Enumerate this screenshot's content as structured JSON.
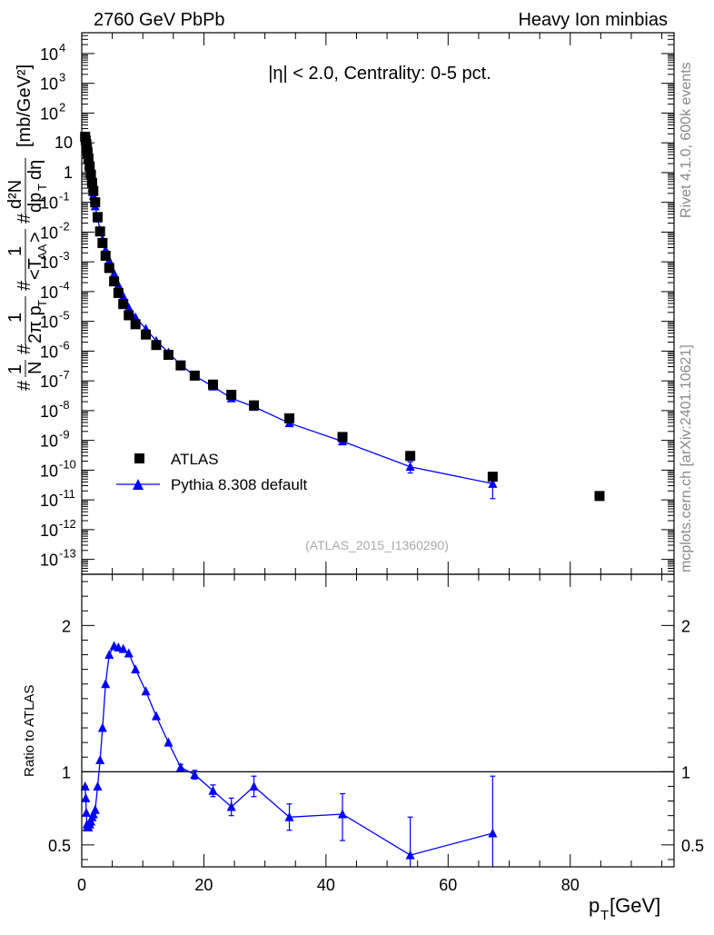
{
  "header": {
    "left": "2760 GeV PbPb",
    "right": "Heavy Ion minbias"
  },
  "side_labels": {
    "rivet": "Rivet 4.1.0,  600k events",
    "mcplots": "mcplots.cern.ch [arXiv:2401.10621]"
  },
  "annotations": {
    "cut": "|η| < 2.0, Centrality: 0-5 pct.",
    "analysis": "(ATLAS_2015_I1360290)"
  },
  "legend": {
    "data": "ATLAS",
    "mc": "Pythia 8.308 default"
  },
  "colors": {
    "data": "#000000",
    "mc": "#0000ff",
    "side_text": "#888888",
    "analysis_text": "#aaaaaa"
  },
  "chart_data": [
    {
      "type": "scatter",
      "panel": "main",
      "ylabel_parts": {
        "hash1": "#",
        "frac_N": "N",
        "hash2": "#",
        "two_pi_pt": "2π p",
        "T_sub": "T",
        "hash3": "#",
        "taa": "<T",
        "AA_sub": "AA",
        "taa_close": ">",
        "numer": "d²N",
        "denom": "dp",
        "denom_T": "T",
        "deta": "dη",
        "units": "[mb/GeV²]"
      },
      "xlim": [
        0,
        97
      ],
      "ylim_log10": [
        -13.5,
        4.7
      ],
      "log_y": true,
      "ytick_exponents": [
        4,
        3,
        2,
        1,
        0,
        -1,
        -2,
        -3,
        -4,
        -5,
        -6,
        -7,
        -8,
        -9,
        -10,
        -11,
        -12,
        -13
      ],
      "ytick_special": {
        "1": "10",
        "0": "1"
      },
      "series": [
        {
          "name": "ATLAS",
          "marker": "square",
          "x": [
            0.55,
            0.65,
            0.75,
            0.85,
            0.95,
            1.1,
            1.3,
            1.5,
            1.7,
            1.9,
            2.2,
            2.6,
            3.0,
            3.4,
            3.9,
            4.5,
            5.3,
            6.0,
            6.8,
            7.7,
            8.8,
            10.5,
            12.2,
            14.2,
            16.2,
            18.5,
            21.5,
            24.5,
            28.2,
            34.0,
            42.7,
            53.8,
            67.3,
            84.8
          ],
          "y": [
            16.0,
            12.0,
            9.0,
            6.5,
            4.8,
            3.0,
            1.6,
            0.85,
            0.45,
            0.24,
            0.1,
            0.032,
            0.0105,
            0.0043,
            0.0016,
            0.00062,
            0.00022,
            9e-05,
            3.8e-05,
            1.6e-05,
            8e-06,
            3.6e-06,
            1.6e-06,
            7.5e-07,
            3.3e-07,
            1.5e-07,
            7.5e-08,
            3.4e-08,
            1.5e-08,
            5.5e-09,
            1.3e-09,
            3e-10,
            6e-11,
            1.35e-11
          ]
        },
        {
          "name": "Pythia 8.308 default",
          "marker": "triangle",
          "line": true,
          "x": [
            0.55,
            0.65,
            0.75,
            0.85,
            0.95,
            1.1,
            1.3,
            1.5,
            1.7,
            1.9,
            2.2,
            2.6,
            3.0,
            3.4,
            3.9,
            4.5,
            5.3,
            6.0,
            6.8,
            7.7,
            8.8,
            10.5,
            12.2,
            14.2,
            16.2,
            18.5,
            21.5,
            24.5,
            28.2,
            34.0,
            42.7,
            53.8,
            67.3
          ],
          "y": [
            14.4,
            9.84,
            6.48,
            4.16,
            2.98,
            1.86,
            1.02,
            0.56,
            0.31,
            0.17,
            0.074,
            0.0288,
            0.0113,
            0.0056,
            0.00255,
            0.00112,
            0.00041,
            0.000167,
            7e-05,
            2.9e-05,
            1.36e-05,
            5.6e-06,
            2.2e-06,
            9e-07,
            3.4e-07,
            1.47e-07,
            6.5e-08,
            2.6e-08,
            1.35e-08,
            3.8e-09,
            9.3e-10,
            1.3e-10,
            3.5e-11
          ],
          "yerr_up": [
            0,
            0,
            0,
            0,
            0,
            0,
            0,
            0,
            0,
            0,
            0,
            0,
            0,
            0,
            0,
            0,
            0,
            0,
            0,
            0,
            0,
            0,
            0,
            0,
            0,
            0,
            0,
            0,
            0,
            5e-10,
            1.3e-10,
            6e-11,
            2.3e-11
          ],
          "yerr_down": [
            0,
            0,
            0,
            0,
            0,
            0,
            0,
            0,
            0,
            0,
            0,
            0,
            0,
            0,
            0,
            0,
            0,
            0,
            0,
            0,
            0,
            0,
            0,
            0,
            0,
            0,
            0,
            0,
            0,
            5e-10,
            1.3e-10,
            5e-11,
            2.4e-11
          ]
        }
      ]
    },
    {
      "type": "scatter",
      "panel": "ratio",
      "ylabel": "Ratio to ATLAS",
      "xlabel_main": "p",
      "xlabel_sub": "T",
      "xlabel_unit": " [GeV]",
      "xlim": [
        0,
        97
      ],
      "ylim": [
        0.35,
        2.35
      ],
      "reference_line": 1,
      "xticks": [
        0,
        20,
        40,
        60,
        80
      ],
      "yticks": [
        0.5,
        1,
        2
      ],
      "series": [
        {
          "name": "Pythia 8.308 default",
          "marker": "triangle",
          "line": true,
          "x": [
            0.55,
            0.65,
            0.75,
            0.85,
            0.95,
            1.1,
            1.3,
            1.5,
            1.7,
            1.9,
            2.2,
            2.6,
            3.0,
            3.4,
            3.9,
            4.5,
            5.3,
            6.0,
            6.8,
            7.7,
            8.8,
            10.5,
            12.2,
            14.2,
            16.2,
            18.5,
            21.5,
            24.5,
            28.2,
            34.0,
            42.7,
            53.8,
            67.3
          ],
          "y": [
            0.9,
            0.82,
            0.72,
            0.64,
            0.62,
            0.62,
            0.64,
            0.66,
            0.69,
            0.71,
            0.74,
            0.9,
            1.08,
            1.3,
            1.6,
            1.8,
            1.86,
            1.85,
            1.84,
            1.81,
            1.7,
            1.55,
            1.38,
            1.2,
            1.03,
            0.98,
            0.87,
            0.76,
            0.9,
            0.69,
            0.71,
            0.43,
            0.58
          ],
          "yerr_up": [
            0,
            0,
            0,
            0,
            0,
            0,
            0,
            0,
            0,
            0,
            0,
            0,
            0,
            0,
            0,
            0,
            0,
            0,
            0,
            0,
            0,
            0,
            0,
            0,
            0.02,
            0.03,
            0.04,
            0.06,
            0.07,
            0.09,
            0.14,
            0.26,
            0.39
          ],
          "yerr_down": [
            0,
            0,
            0,
            0,
            0,
            0,
            0,
            0,
            0,
            0,
            0,
            0,
            0,
            0,
            0,
            0,
            0,
            0,
            0,
            0,
            0,
            0,
            0,
            0,
            0.02,
            0.03,
            0.04,
            0.06,
            0.07,
            0.09,
            0.18,
            0.13,
            0.25
          ]
        }
      ]
    }
  ]
}
